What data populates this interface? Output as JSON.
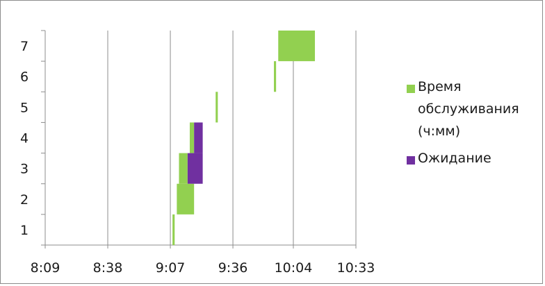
{
  "chart_data": {
    "type": "bar",
    "orientation": "horizontal-stacked-gantt",
    "categories": [
      "1",
      "2",
      "3",
      "4",
      "5",
      "6",
      "7"
    ],
    "x_ticks": [
      "8:09",
      "8:38",
      "9:07",
      "9:36",
      "10:04",
      "10:33"
    ],
    "xlim": [
      "8:09",
      "10:33"
    ],
    "ylim": [
      0,
      7
    ],
    "grid": "vertical major gridlines",
    "legend_position": "right",
    "series": [
      {
        "name": "Время обслуживания (ч:мм)",
        "color": "#92d050",
        "values": [
          {
            "category": "1",
            "start": "9:08",
            "end": "9:09"
          },
          {
            "category": "2",
            "start": "9:10",
            "end": "9:18"
          },
          {
            "category": "3",
            "start": "9:11",
            "end": "9:15"
          },
          {
            "category": "4",
            "start": "9:16",
            "end": "9:18"
          },
          {
            "category": "5",
            "start": "9:28",
            "end": "9:29"
          },
          {
            "category": "6",
            "start": "9:55",
            "end": "9:56"
          },
          {
            "category": "7",
            "start": "9:57",
            "end": "10:14"
          }
        ]
      },
      {
        "name": "Ожидание",
        "color": "#7030a0",
        "values": [
          {
            "category": "1",
            "start": "9:09",
            "end": "9:09"
          },
          {
            "category": "2",
            "start": "9:18",
            "end": "9:18"
          },
          {
            "category": "3",
            "start": "9:15",
            "end": "9:22"
          },
          {
            "category": "4",
            "start": "9:18",
            "end": "9:22"
          },
          {
            "category": "5",
            "start": "9:29",
            "end": "9:29"
          },
          {
            "category": "6",
            "start": "9:56",
            "end": "9:56"
          },
          {
            "category": "7",
            "start": "10:14",
            "end": "10:14"
          }
        ]
      }
    ]
  }
}
